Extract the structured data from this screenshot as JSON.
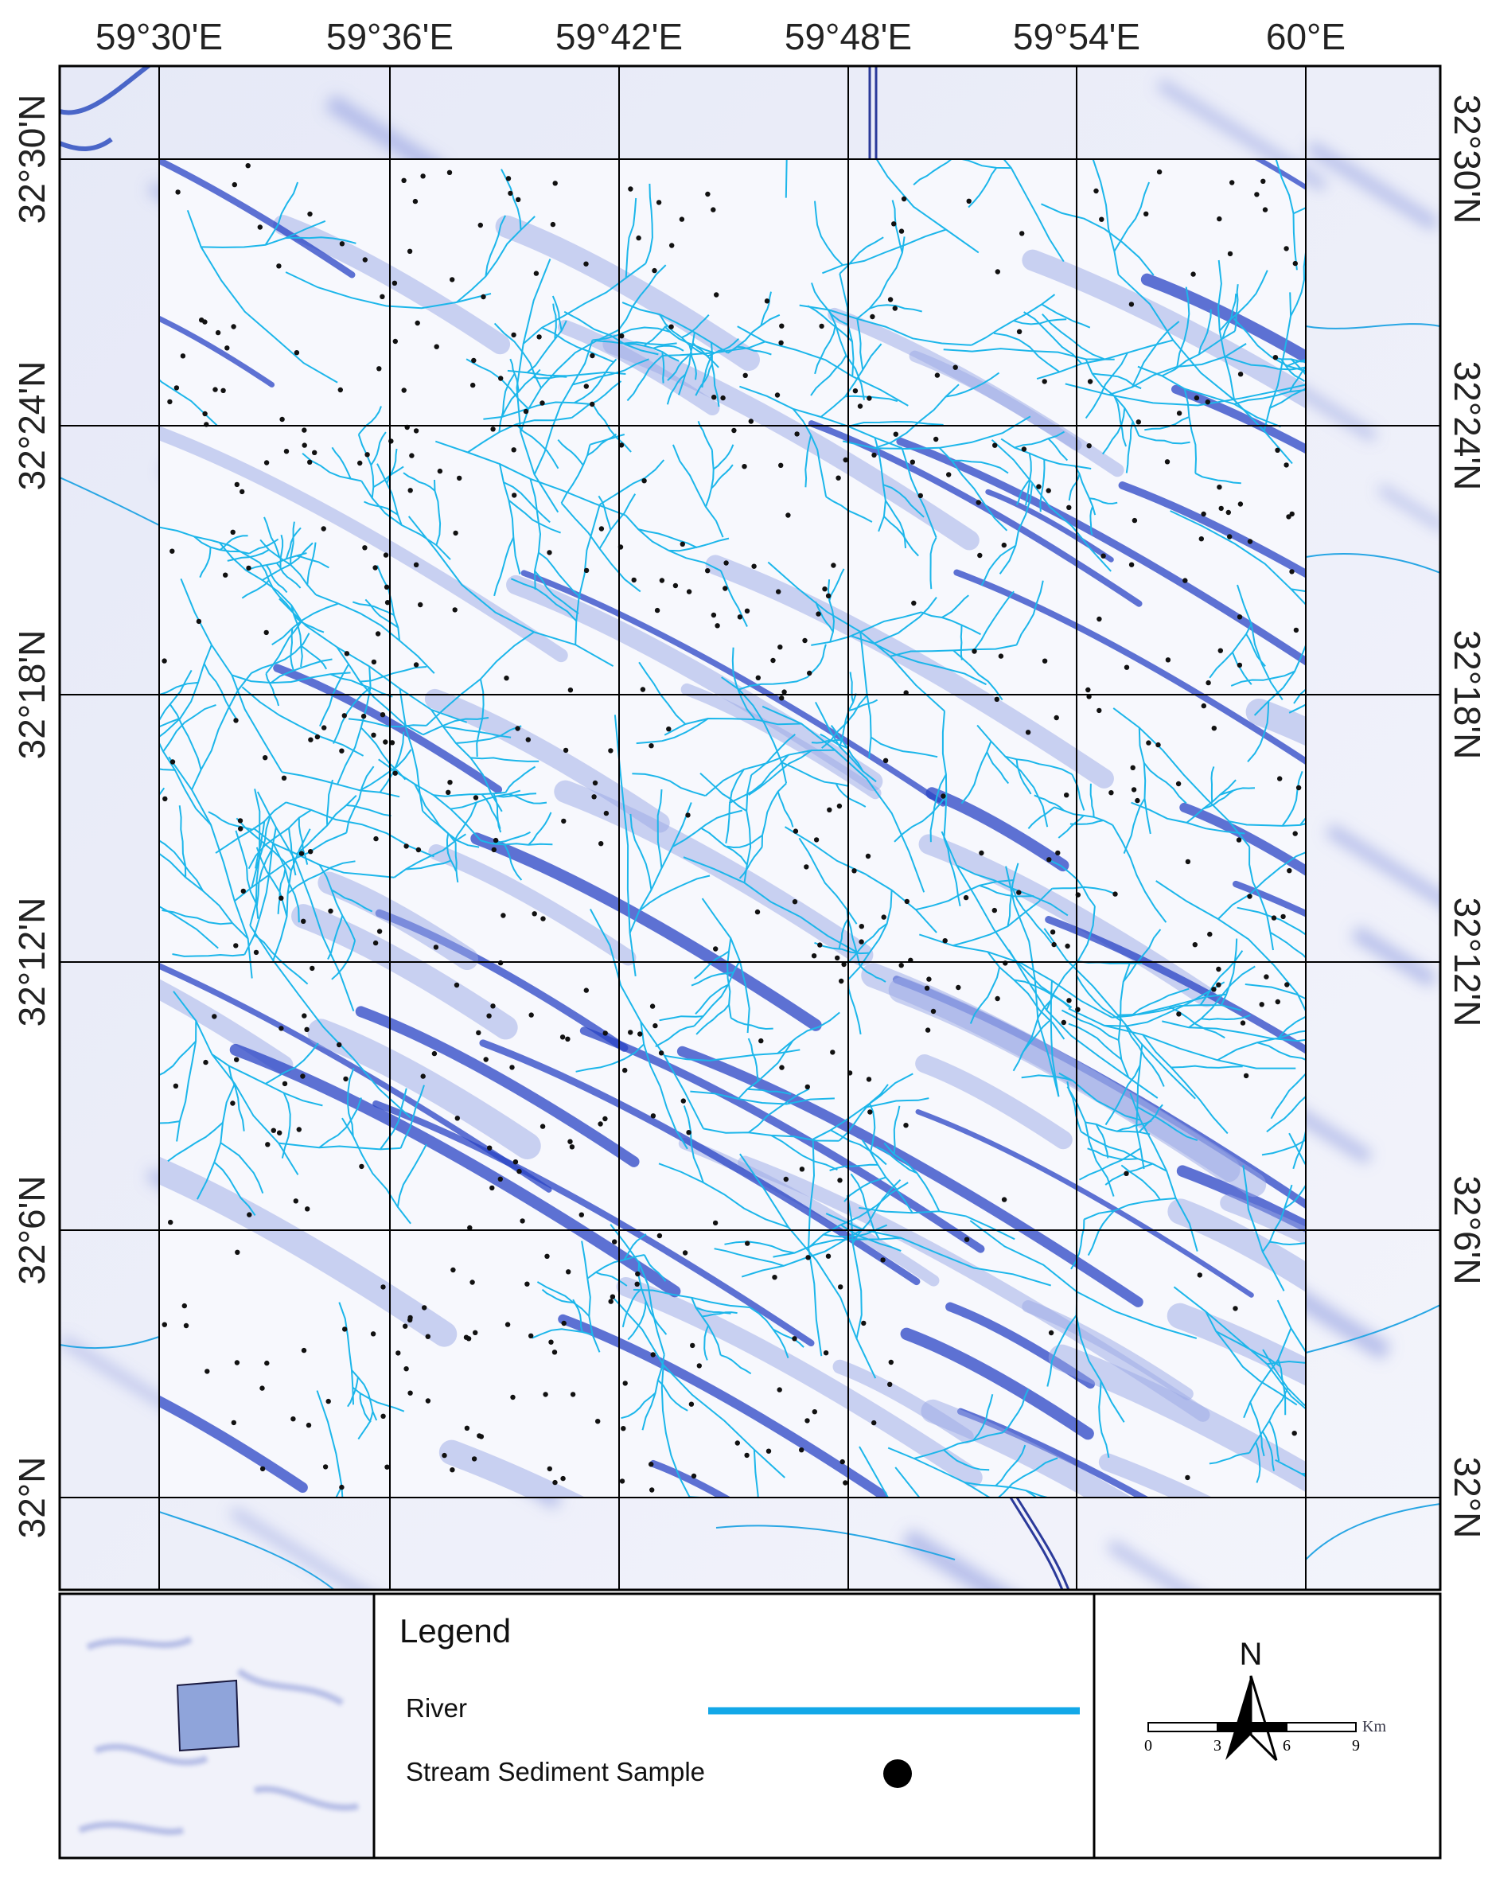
{
  "map": {
    "longitude_labels": [
      "59°30'E",
      "59°36'E",
      "59°42'E",
      "59°48'E",
      "59°54'E",
      "60°E"
    ],
    "latitude_labels": [
      "32°30'N",
      "32°24'N",
      "32°18'N",
      "32°12'N",
      "32°6'N",
      "32°N"
    ]
  },
  "legend": {
    "title": "Legend",
    "items": [
      {
        "label": "River"
      },
      {
        "label": "Stream Sediment Sample"
      }
    ]
  },
  "north_arrow": "N",
  "scale_bar": {
    "labels": [
      "0",
      "3",
      "6",
      "9"
    ],
    "unit": "Km"
  }
}
